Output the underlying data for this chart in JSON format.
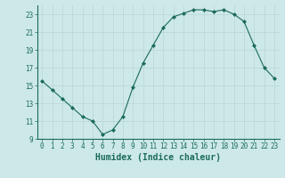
{
  "x": [
    0,
    1,
    2,
    3,
    4,
    5,
    6,
    7,
    8,
    9,
    10,
    11,
    12,
    13,
    14,
    15,
    16,
    17,
    18,
    19,
    20,
    21,
    22,
    23
  ],
  "y": [
    15.5,
    14.5,
    13.5,
    12.5,
    11.5,
    11.0,
    9.5,
    10.0,
    11.5,
    14.8,
    17.5,
    19.5,
    21.5,
    22.7,
    23.1,
    23.5,
    23.5,
    23.3,
    23.5,
    23.0,
    22.2,
    19.5,
    17.0,
    15.8
  ],
  "xlabel": "Humidex (Indice chaleur)",
  "ylim": [
    9,
    24
  ],
  "xlim": [
    -0.5,
    23.5
  ],
  "yticks": [
    9,
    11,
    13,
    15,
    17,
    19,
    21,
    23
  ],
  "xticks": [
    0,
    1,
    2,
    3,
    4,
    5,
    6,
    7,
    8,
    9,
    10,
    11,
    12,
    13,
    14,
    15,
    16,
    17,
    18,
    19,
    20,
    21,
    22,
    23
  ],
  "line_color": "#1a6b5a",
  "marker_color": "#1a6b5a",
  "bg_color": "#cde8e8",
  "grid_color": "#b8d4d4",
  "xlabel_color": "#1a6b5a",
  "tick_color": "#1a6b5a",
  "font_family": "monospace",
  "tick_fontsize": 5.5,
  "xlabel_fontsize": 7.0
}
